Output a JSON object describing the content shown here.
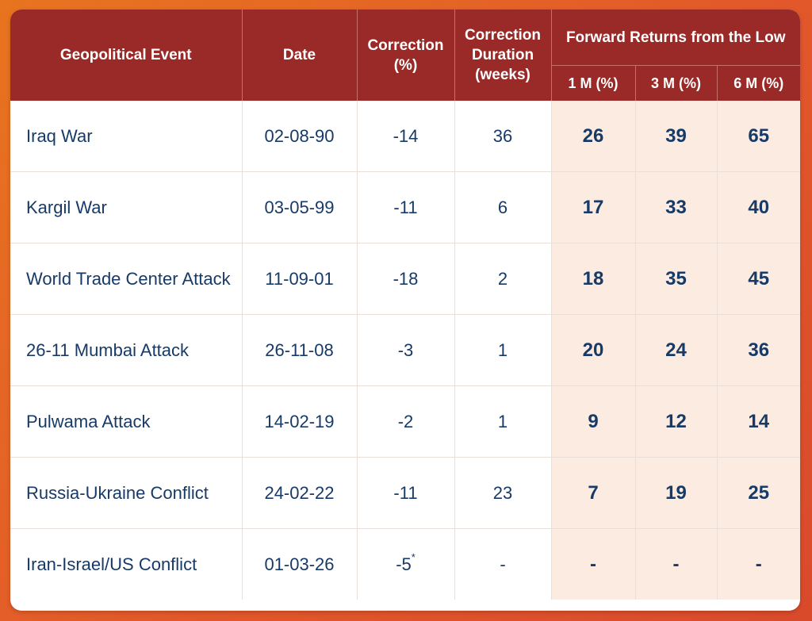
{
  "headers": {
    "event": "Geopolitical Event",
    "date": "Date",
    "correction": "Correction (%)",
    "duration": "Correction Duration (weeks)",
    "forward_group": "Forward Returns from the Low",
    "m1": "1 M (%)",
    "m3": "3 M (%)",
    "m6": "6 M (%)"
  },
  "rows": [
    {
      "event": "Iraq War",
      "date": "02-08-90",
      "correction": "-14",
      "correction_note": "",
      "duration": "36",
      "m1": "26",
      "m3": "39",
      "m6": "65"
    },
    {
      "event": "Kargil War",
      "date": "03-05-99",
      "correction": "-11",
      "correction_note": "",
      "duration": "6",
      "m1": "17",
      "m3": "33",
      "m6": "40"
    },
    {
      "event": "World Trade Center Attack",
      "date": "11-09-01",
      "correction": "-18",
      "correction_note": "",
      "duration": "2",
      "m1": "18",
      "m3": "35",
      "m6": "45"
    },
    {
      "event": "26-11 Mumbai Attack",
      "date": "26-11-08",
      "correction": "-3",
      "correction_note": "",
      "duration": "1",
      "m1": "20",
      "m3": "24",
      "m6": "36"
    },
    {
      "event": "Pulwama Attack",
      "date": "14-02-19",
      "correction": "-2",
      "correction_note": "",
      "duration": "1",
      "m1": "9",
      "m3": "12",
      "m6": "14"
    },
    {
      "event": "Russia-Ukraine Conflict",
      "date": "24-02-22",
      "correction": "-11",
      "correction_note": "",
      "duration": "23",
      "m1": "7",
      "m3": "19",
      "m6": "25"
    },
    {
      "event": "Iran-Israel/US Conflict",
      "date": "01-03-26",
      "correction": "-5",
      "correction_note": "*",
      "duration": "-",
      "m1": "-",
      "m3": "-",
      "m6": "-"
    }
  ],
  "colors": {
    "header_bg": "#9a2a27",
    "text": "#173a66",
    "returns_bg": "#fcebe0",
    "page_bg": "#e2582a"
  }
}
